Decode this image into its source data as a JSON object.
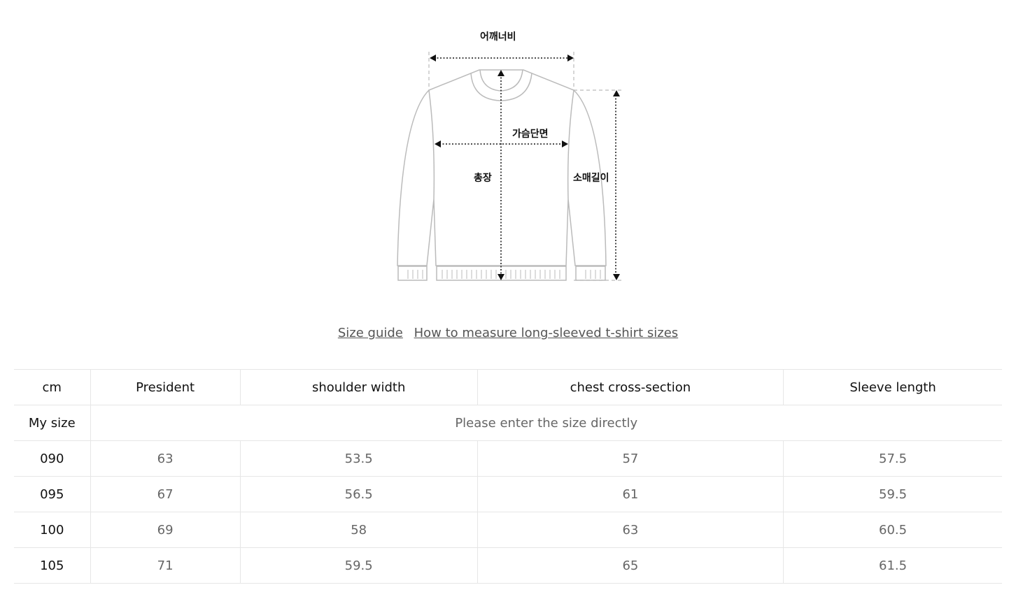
{
  "diagram": {
    "shoulder": "어깨너비",
    "chest": "가슴단면",
    "length": "총장",
    "sleeve": "소매길이"
  },
  "links": {
    "size_guide": "Size guide",
    "how_to": "How to measure long-sleeved t-shirt sizes"
  },
  "table": {
    "headers": [
      "cm",
      "President",
      "shoulder width",
      "chest cross-section",
      "Sleeve length"
    ],
    "my_size_label": "My size",
    "my_size_prompt": "Please enter the size directly",
    "rows": [
      [
        "090",
        "63",
        "53.5",
        "57",
        "57.5"
      ],
      [
        "095",
        "67",
        "56.5",
        "61",
        "59.5"
      ],
      [
        "100",
        "69",
        "58",
        "63",
        "60.5"
      ],
      [
        "105",
        "71",
        "59.5",
        "65",
        "61.5"
      ]
    ]
  }
}
